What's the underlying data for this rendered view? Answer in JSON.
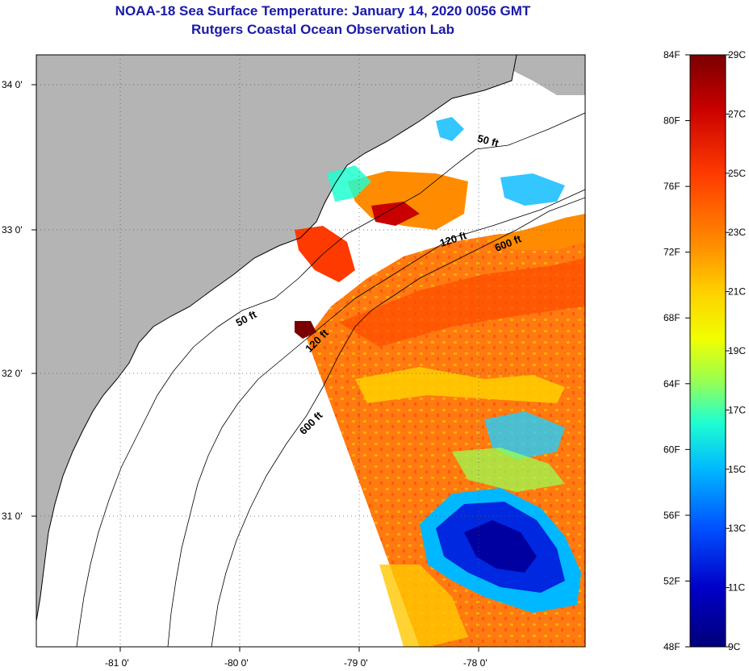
{
  "header": {
    "title": "NOAA-18 Sea Surface Temperature:  January 14, 2020 0056 GMT",
    "subtitle": "Rutgers Coastal Ocean Observation Lab"
  },
  "map": {
    "lon_ticks": [
      "-81 0'",
      "-80 0'",
      "-79 0'",
      "-78 0'"
    ],
    "lat_ticks": [
      "34 0'",
      "33 0'",
      "32 0'",
      "31 0'"
    ],
    "depth_contour_labels": [
      "50 ft",
      "50 ft",
      "120 ft",
      "120 ft",
      "600 ft",
      "600 ft"
    ]
  },
  "colorbar": {
    "fahrenheit_labels": [
      "84F",
      "80F",
      "76F",
      "72F",
      "68F",
      "64F",
      "60F",
      "56F",
      "52F",
      "48F"
    ],
    "celsius_labels": [
      "29C",
      "27C",
      "25C",
      "23C",
      "21C",
      "19C",
      "17C",
      "15C",
      "13C",
      "11C",
      "9C"
    ],
    "colors": [
      "#7a0000",
      "#c80000",
      "#ff3a00",
      "#ff8c00",
      "#ffd000",
      "#f0ff00",
      "#9aff50",
      "#20ffd0",
      "#00b8ff",
      "#0050ff",
      "#0000c8",
      "#00007a"
    ]
  },
  "colors": {
    "land": "#b4b4b4",
    "water_nodata": "#ffffff",
    "title": "#1a1aa8"
  }
}
